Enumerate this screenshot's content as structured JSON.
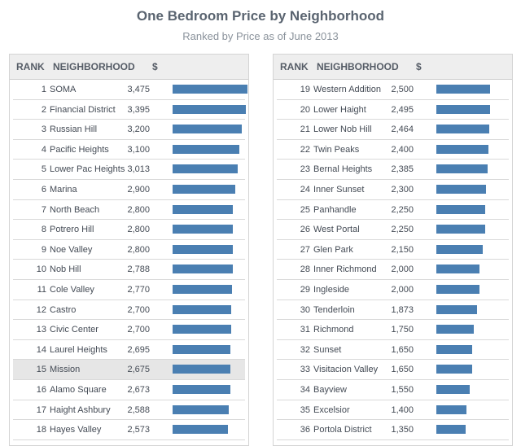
{
  "header": {
    "title": "One Bedroom Price by Neighborhood",
    "subtitle": "Ranked by Price as of June 2013"
  },
  "columns": {
    "rank": "RANK",
    "neighborhood": "NEIGHBORHOOD",
    "price": "$"
  },
  "highlighted_neighborhood": "Mission",
  "colors": {
    "bar": "#4a7fb2",
    "highlight_row": "#e6e6e6"
  },
  "chart_data": {
    "type": "bar",
    "title": "One Bedroom Price by Neighborhood",
    "subtitle": "Ranked by Price as of June 2013",
    "ylabel": "$",
    "xlim": [
      0,
      3475
    ],
    "rows": [
      {
        "rank": "1",
        "name": "SOMA",
        "price": "3,475",
        "value": 3475
      },
      {
        "rank": "2",
        "name": "Financial District",
        "price": "3,395",
        "value": 3395
      },
      {
        "rank": "3",
        "name": "Russian Hill",
        "price": "3,200",
        "value": 3200
      },
      {
        "rank": "4",
        "name": "Pacific Heights",
        "price": "3,100",
        "value": 3100
      },
      {
        "rank": "5",
        "name": "Lower Pac Heights",
        "price": "3,013",
        "value": 3013
      },
      {
        "rank": "6",
        "name": "Marina",
        "price": "2,900",
        "value": 2900
      },
      {
        "rank": "7",
        "name": "North Beach",
        "price": "2,800",
        "value": 2800
      },
      {
        "rank": "8",
        "name": "Potrero Hill",
        "price": "2,800",
        "value": 2800
      },
      {
        "rank": "9",
        "name": "Noe Valley",
        "price": "2,800",
        "value": 2800
      },
      {
        "rank": "10",
        "name": "Nob Hill",
        "price": "2,788",
        "value": 2788
      },
      {
        "rank": "11",
        "name": "Cole Valley",
        "price": "2,770",
        "value": 2770
      },
      {
        "rank": "12",
        "name": "Castro",
        "price": "2,700",
        "value": 2700
      },
      {
        "rank": "13",
        "name": "Civic Center",
        "price": "2,700",
        "value": 2700
      },
      {
        "rank": "14",
        "name": "Laurel Heights",
        "price": "2,695",
        "value": 2695
      },
      {
        "rank": "15",
        "name": "Mission",
        "price": "2,675",
        "value": 2675
      },
      {
        "rank": "16",
        "name": "Alamo Square",
        "price": "2,673",
        "value": 2673
      },
      {
        "rank": "17",
        "name": "Haight Ashbury",
        "price": "2,588",
        "value": 2588
      },
      {
        "rank": "18",
        "name": "Hayes Valley",
        "price": "2,573",
        "value": 2573
      },
      {
        "rank": "19",
        "name": "Western Addition",
        "price": "2,500",
        "value": 2500
      },
      {
        "rank": "20",
        "name": "Lower Haight",
        "price": "2,495",
        "value": 2495
      },
      {
        "rank": "21",
        "name": "Lower Nob Hill",
        "price": "2,464",
        "value": 2464
      },
      {
        "rank": "22",
        "name": "Twin Peaks",
        "price": "2,400",
        "value": 2400
      },
      {
        "rank": "23",
        "name": "Bernal Heights",
        "price": "2,385",
        "value": 2385
      },
      {
        "rank": "24",
        "name": "Inner Sunset",
        "price": "2,300",
        "value": 2300
      },
      {
        "rank": "25",
        "name": "Panhandle",
        "price": "2,250",
        "value": 2250
      },
      {
        "rank": "26",
        "name": "West Portal",
        "price": "2,250",
        "value": 2250
      },
      {
        "rank": "27",
        "name": "Glen Park",
        "price": "2,150",
        "value": 2150
      },
      {
        "rank": "28",
        "name": "Inner Richmond",
        "price": "2,000",
        "value": 2000
      },
      {
        "rank": "29",
        "name": "Ingleside",
        "price": "2,000",
        "value": 2000
      },
      {
        "rank": "30",
        "name": "Tenderloin",
        "price": "1,873",
        "value": 1873
      },
      {
        "rank": "31",
        "name": "Richmond",
        "price": "1,750",
        "value": 1750
      },
      {
        "rank": "32",
        "name": "Sunset",
        "price": "1,650",
        "value": 1650
      },
      {
        "rank": "33",
        "name": "Visitacion Valley",
        "price": "1,650",
        "value": 1650
      },
      {
        "rank": "34",
        "name": "Bayview",
        "price": "1,550",
        "value": 1550
      },
      {
        "rank": "35",
        "name": "Excelsior",
        "price": "1,400",
        "value": 1400
      },
      {
        "rank": "36",
        "name": "Portola District",
        "price": "1,350",
        "value": 1350
      }
    ]
  }
}
